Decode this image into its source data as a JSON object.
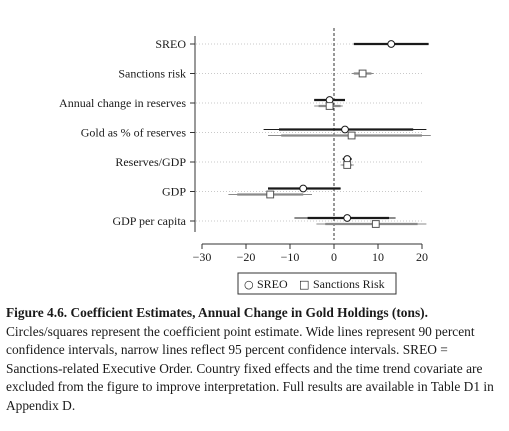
{
  "chart_data": {
    "type": "coefficient_plot",
    "title": "",
    "xlabel": "",
    "ylabel": "",
    "xlim": [
      -30,
      20
    ],
    "x_ticks": [
      -30,
      -20,
      -10,
      0,
      10,
      20
    ],
    "reference_line": 0,
    "grid": "horizontal dotted",
    "legend_placement": "bottom-center",
    "categories": [
      "SREO",
      "Sanctions risk",
      "Annual change in reserves",
      "Gold as % of reserves",
      "Reserves/GDP",
      "GDP",
      "GDP per capita"
    ],
    "series": [
      {
        "name": "SREO",
        "marker": "circle",
        "color": "#1a1a1a",
        "points": [
          {
            "category": "SREO",
            "estimate": 13,
            "ci90": [
              4.5,
              21.5
            ],
            "ci95": [
              4.5,
              21.5
            ]
          },
          {
            "category": "Annual change in reserves",
            "estimate": -1,
            "ci90": [
              -4.5,
              2.5
            ],
            "ci95": [
              -4.5,
              2.5
            ]
          },
          {
            "category": "Gold as % of reserves",
            "estimate": 2.5,
            "ci90": [
              -12.5,
              18
            ],
            "ci95": [
              -16,
              21
            ]
          },
          {
            "category": "Reserves/GDP",
            "estimate": 3,
            "ci90": [
              2,
              4
            ],
            "ci95": [
              2,
              4
            ]
          },
          {
            "category": "GDP",
            "estimate": -7,
            "ci90": [
              -15,
              1.5
            ],
            "ci95": [
              -15,
              1.5
            ]
          },
          {
            "category": "GDP per capita",
            "estimate": 3,
            "ci90": [
              -6,
              12.5
            ],
            "ci95": [
              -9,
              14
            ]
          }
        ]
      },
      {
        "name": "Sanctions Risk",
        "marker": "square",
        "color": "#8a8a8a",
        "points": [
          {
            "category": "Sanctions risk",
            "estimate": 6.5,
            "ci90": [
              4.5,
              8.5
            ],
            "ci95": [
              4,
              9
            ]
          },
          {
            "category": "Annual change in reserves",
            "estimate": -1,
            "ci90": [
              -3.5,
              1.5
            ],
            "ci95": [
              -4.5,
              2
            ]
          },
          {
            "category": "Gold as % of reserves",
            "estimate": 4,
            "ci90": [
              -12,
              20
            ],
            "ci95": [
              -15,
              22
            ]
          },
          {
            "category": "Reserves/GDP",
            "estimate": 3,
            "ci90": [
              2,
              4
            ],
            "ci95": [
              1.5,
              4.5
            ]
          },
          {
            "category": "GDP",
            "estimate": -14.5,
            "ci90": [
              -22,
              -7
            ],
            "ci95": [
              -24,
              -5
            ]
          },
          {
            "category": "GDP per capita",
            "estimate": 9.5,
            "ci90": [
              -2,
              19
            ],
            "ci95": [
              -4,
              21
            ]
          }
        ]
      }
    ]
  },
  "legend": {
    "sreo_symbol": "○",
    "sreo_label": "SREO",
    "risk_symbol": "□",
    "risk_label": "Sanctions Risk"
  },
  "caption": {
    "title": "Figure 4.6.  Coefficient Estimates, Annual Change in Gold Holdings (tons).",
    "body": "Circles/squares represent the coefficient point estimate. Wide lines represent 90 percent confidence intervals, narrow lines reflect 95 percent confidence intervals. SREO = Sanctions-related Executive Order. Country fixed effects and the time trend covariate are excluded from the figure to improve interpretation. Full results are available in Table D1 in Appendix D."
  }
}
